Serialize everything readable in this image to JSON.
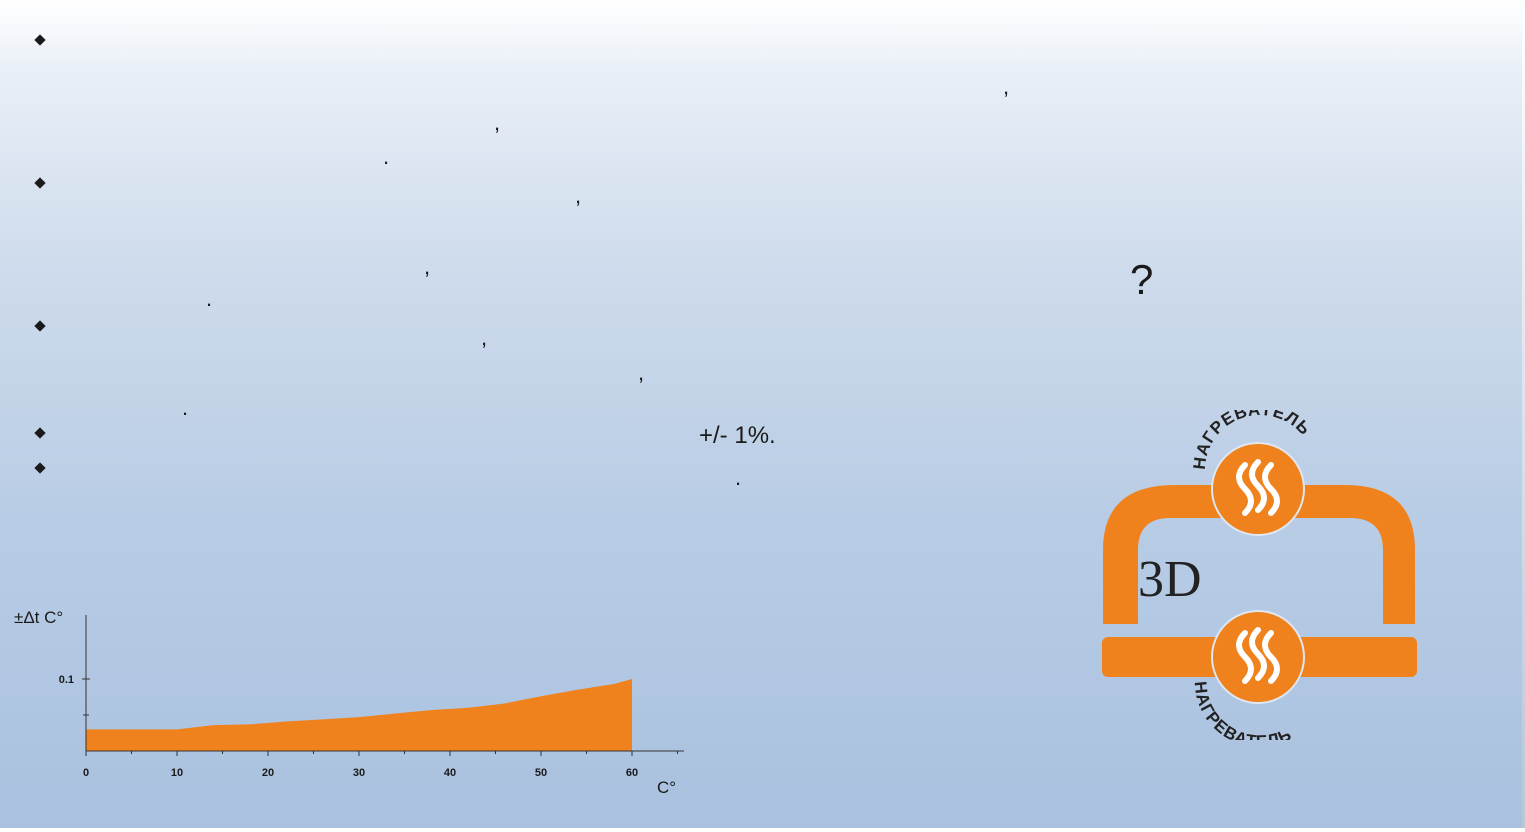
{
  "bullets": [
    {
      "marks": [
        ",",
        ",",
        "."
      ]
    },
    {
      "marks": [
        ",",
        ",",
        "."
      ]
    },
    {
      "marks": [
        ",",
        ",",
        "."
      ]
    },
    {
      "text": "+/- 1%."
    },
    {
      "mark": "."
    }
  ],
  "question_mark": "?",
  "logo": {
    "top_word": "НАГРЕВАТЕЛЬ",
    "bottom_word": "НАГРЕВАТЕЛЬ",
    "center_text": "3D",
    "color": "#f0821e"
  },
  "chart_data": {
    "type": "area",
    "ylabel": "±Δt C°",
    "xlabel": "C°",
    "x_ticks": [
      "0",
      "10",
      "20",
      "30",
      "40",
      "50",
      "60"
    ],
    "y_ticks": [
      "0.1"
    ],
    "xlim": [
      0,
      66
    ],
    "ylim": [
      0,
      0.18
    ],
    "x": [
      0,
      10,
      14,
      18,
      22,
      26,
      30,
      34,
      38,
      42,
      46,
      50,
      54,
      58,
      60
    ],
    "y": [
      0.03,
      0.03,
      0.036,
      0.037,
      0.041,
      0.044,
      0.047,
      0.052,
      0.057,
      0.06,
      0.066,
      0.076,
      0.085,
      0.093,
      0.1
    ],
    "fill_color": "#f0821e"
  }
}
